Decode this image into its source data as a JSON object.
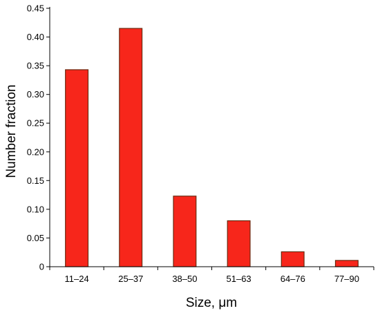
{
  "chart_data": {
    "type": "bar",
    "title": "",
    "xlabel": "Size, μm",
    "ylabel": "Number fraction",
    "categories": [
      "11–24",
      "25–37",
      "38–50",
      "51–63",
      "64–76",
      "77–90"
    ],
    "values": [
      0.343,
      0.415,
      0.123,
      0.08,
      0.026,
      0.011
    ],
    "ylim": [
      0,
      0.45
    ],
    "yticks": [
      "0",
      "0.05",
      "0.10",
      "0.15",
      "0.20",
      "0.25",
      "0.30",
      "0.35",
      "0.40",
      "0.45"
    ],
    "grid": false,
    "legend": "none",
    "colors": {
      "bar_fill": "#f7261b",
      "bar_edge": "#6b2a10",
      "axis": "#000000"
    }
  }
}
